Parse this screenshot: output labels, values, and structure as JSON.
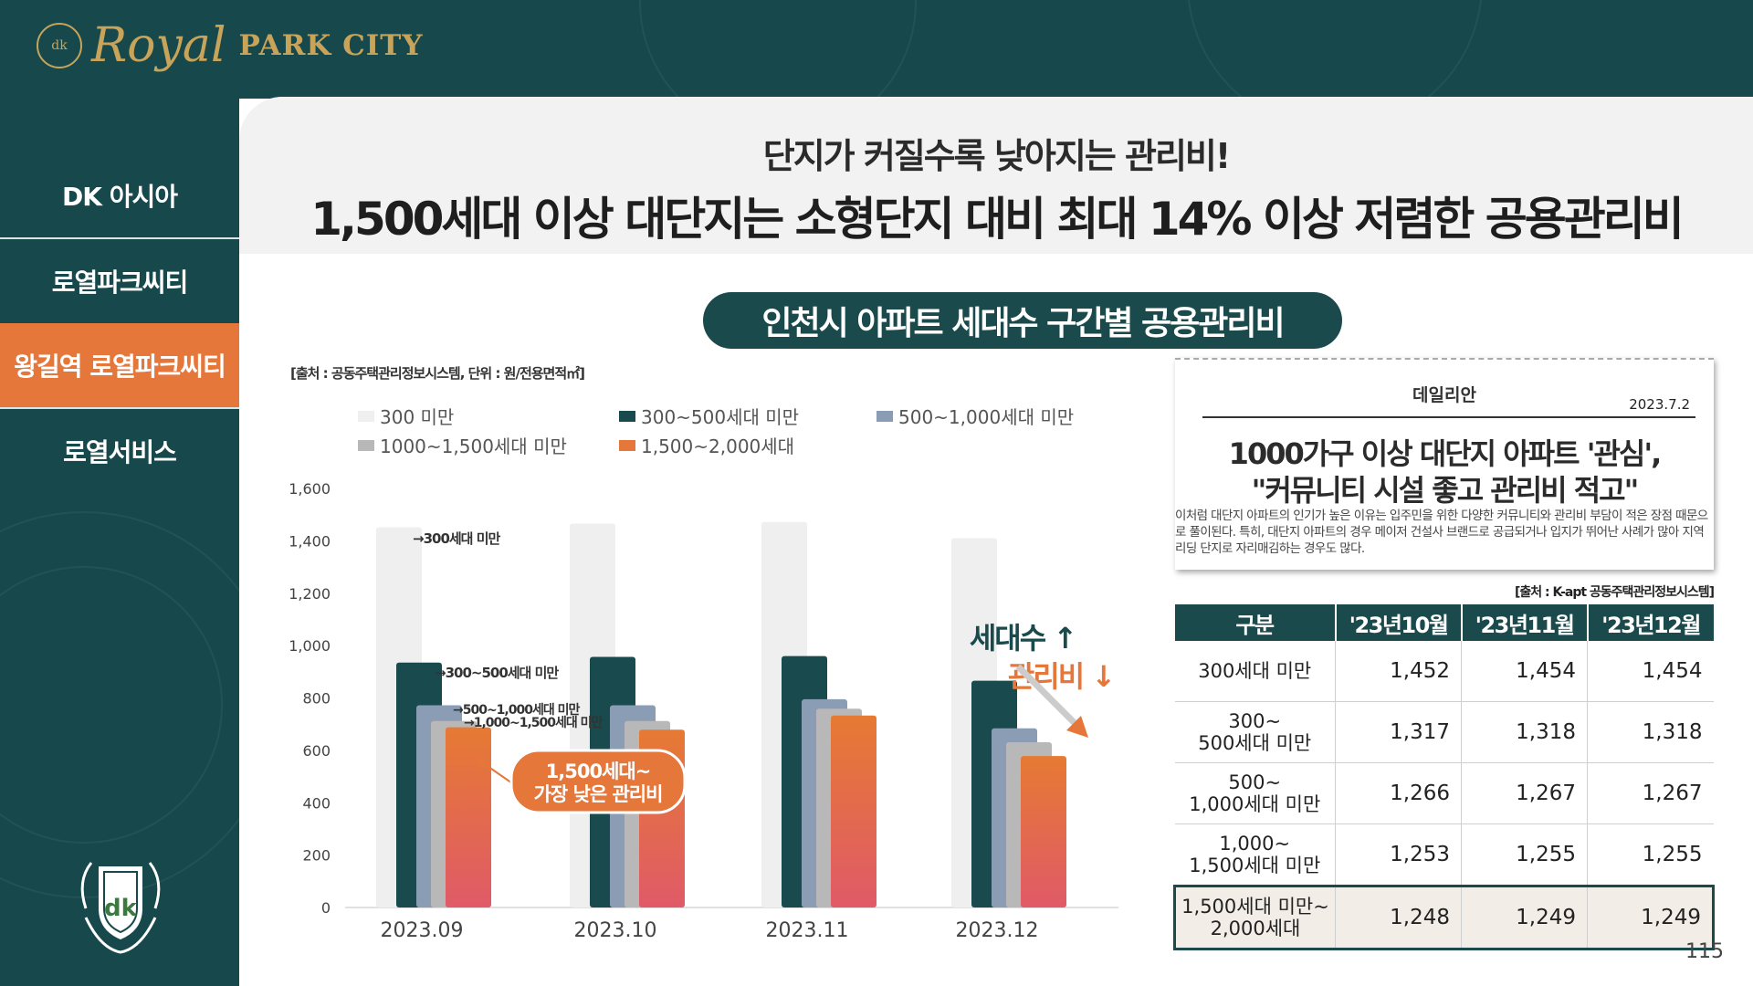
{
  "brand": {
    "logo_royal": "Royal",
    "logo_park": "PARK CITY",
    "badge_text": "dk"
  },
  "sidebar": {
    "items": [
      {
        "label": "DK 아시아",
        "active": false
      },
      {
        "label": "로열파크씨티",
        "active": false
      },
      {
        "label": "왕길역 로열파크씨티",
        "active": true
      },
      {
        "label": "로열서비스",
        "active": false
      }
    ],
    "emblem_text": "dk"
  },
  "header": {
    "subtitle": "단지가 커질수록 낮아지는 관리비!",
    "title": "1,500세대 이상 대단지는 소형단지 대비 최대 14% 이상 저렴한 공용관리비"
  },
  "chart_section": {
    "pill": "인천시 아파트 세대수 구간별 공용관리비",
    "source": "[출처 : 공동주택관리정보시스템, 단위 : 원/전용면적㎡]"
  },
  "chart_data": {
    "type": "bar",
    "categories": [
      "2023.09",
      "2023.10",
      "2023.11",
      "2023.12"
    ],
    "ylim": [
      0,
      1600
    ],
    "yticks": [
      "0",
      "200",
      "400",
      "600",
      "800",
      "1,000",
      "1,200",
      "1,400",
      "1,600"
    ],
    "series": [
      {
        "name": "300 미만",
        "color": "#efefef",
        "values": [
          1452,
          1466,
          1472,
          1410
        ]
      },
      {
        "name": "300~500세대 미만",
        "color": "#184a4e",
        "values": [
          935,
          957,
          960,
          866
        ]
      },
      {
        "name": "500~1,000세대 미만",
        "color": "#8a9db5",
        "values": [
          772,
          772,
          795,
          684
        ]
      },
      {
        "name": "1000~1,500세대 미만",
        "color": "#b8b8b8",
        "values": [
          712,
          712,
          759,
          631
        ]
      },
      {
        "name": "1,500~2,000세대",
        "color": "#e5773b",
        "values": [
          688,
          679,
          733,
          578
        ]
      }
    ],
    "annotations": {
      "a300": "→300세대 미만",
      "a300_500": "→300~500세대 미만",
      "a500_1000": "→500~1,000세대 미만",
      "a1000_1500": "→1,000~1,500세대 미만",
      "callout_line1": "1,500세대~",
      "callout_line2": "가장 낮은 관리비",
      "side_line1": "세대수 ↑",
      "side_line2": "관리비 ↓"
    }
  },
  "news": {
    "paper": "데일리안",
    "date": "2023.7.2",
    "headline1": "1000가구 이상 대단지 아파트 '관심',",
    "headline2": "\"커뮤니티 시설 좋고 관리비 적고\"",
    "body": "이처럼 대단지 아파트의 인기가 높은 이유는 입주민을 위한 다양한 커뮤니티와 관리비 부담이 적은 장점 때문으로 풀이된다. 특히, 대단지 아파트의 경우 메이저 건설사 브랜드로 공급되거나 입지가 뛰어난 사례가 많아 지역 리딩 단지로 자리매김하는 경우도 많다."
  },
  "table": {
    "source": "[출처 : K-apt 공동주택관리정보시스템]",
    "headers": [
      "구분",
      "'23년10월",
      "'23년11월",
      "'23년12월"
    ],
    "rows": [
      {
        "cat1": "300세대 미만",
        "cat2": "",
        "v": [
          "1,452",
          "1,454",
          "1,454"
        ]
      },
      {
        "cat1": "300~",
        "cat2": "500세대 미만",
        "v": [
          "1,317",
          "1,318",
          "1,318"
        ]
      },
      {
        "cat1": "500~",
        "cat2": "1,000세대 미만",
        "v": [
          "1,266",
          "1,267",
          "1,267"
        ]
      },
      {
        "cat1": "1,000~",
        "cat2": "1,500세대 미만",
        "v": [
          "1,253",
          "1,255",
          "1,255"
        ]
      },
      {
        "cat1": "1,500세대 미만~",
        "cat2": "2,000세대",
        "v": [
          "1,248",
          "1,249",
          "1,249"
        ]
      }
    ]
  },
  "page_number": "115",
  "colors": {
    "dark_teal": "#16484c",
    "accent_orange": "#e5773b",
    "gold": "#c8a45a"
  }
}
